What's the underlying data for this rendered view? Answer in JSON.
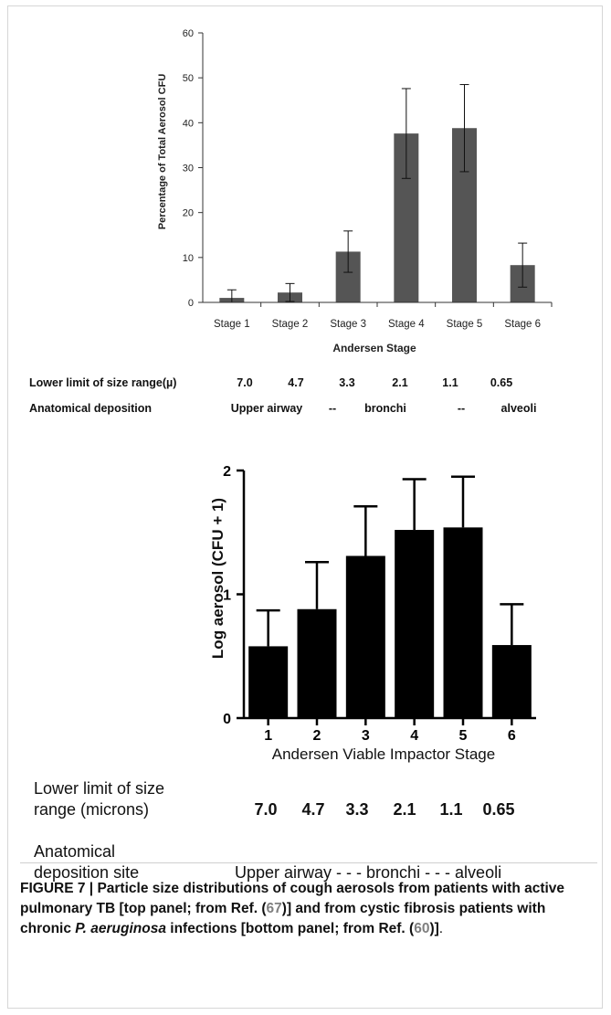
{
  "chart_data": [
    {
      "type": "bar",
      "categories": [
        "Stage 1",
        "Stage 2",
        "Stage 3",
        "Stage 4",
        "Stage 5",
        "Stage 6"
      ],
      "series": [
        {
          "values": [
            1.0,
            2.2,
            11.3,
            37.6,
            38.8,
            8.3
          ],
          "errors": [
            1.8,
            2.0,
            4.6,
            10.0,
            9.7,
            4.9
          ]
        }
      ],
      "xlabel": "Andersen Stage",
      "ylabel": "Percentage of Total Aerosol CFU",
      "ylim": [
        0,
        60
      ],
      "yticks": [
        "0",
        "10",
        "20",
        "30",
        "40",
        "50",
        "60"
      ],
      "color": "#555555",
      "grid": false,
      "annotations": {
        "size_row_label": "Lower limit of size range(µ)",
        "size_values": [
          "7.0",
          "4.7",
          "3.3",
          "2.1",
          "1.1",
          "0.65"
        ],
        "deposition_row_label": "Anatomical deposition",
        "deposition_values": [
          "Upper airway",
          "--",
          "bronchi",
          "--",
          "alveoli"
        ]
      }
    },
    {
      "type": "bar",
      "categories": [
        "1",
        "2",
        "3",
        "4",
        "5",
        "6"
      ],
      "series": [
        {
          "values": [
            0.58,
            0.88,
            1.31,
            1.52,
            1.54,
            0.59
          ],
          "errors": [
            0.29,
            0.38,
            0.4,
            0.41,
            0.41,
            0.33
          ]
        }
      ],
      "xlabel": "Andersen Viable Impactor Stage",
      "ylabel": "Log aerosol (CFU + 1)",
      "ylim": [
        0,
        2
      ],
      "yticks": [
        "0",
        "1",
        "2"
      ],
      "color": "#000000",
      "grid": false,
      "annotations": {
        "size_row_label_line1": "Lower limit of size",
        "size_row_label_line2": "range (microns)",
        "size_values": [
          "7.0",
          "4.7",
          "3.3",
          "2.1",
          "1.1",
          "0.65"
        ],
        "deposition_row_label_line1": "Anatomical",
        "deposition_row_label_line2": "deposition site",
        "deposition_text": "Upper airway - - - bronchi - - - alveoli"
      }
    }
  ],
  "caption": {
    "label": "FIGURE 7 | ",
    "text1": "Particle size distributions of cough aerosols from patients with active pulmonary TB [top panel; from Ref. (",
    "ref1": "67",
    "text2": ")] and from cystic fibrosis patients with chronic ",
    "italic": "P. aeruginosa",
    "text3": " infections [bottom panel; from Ref. (",
    "ref2": "60",
    "text4": ")]",
    "end": "."
  }
}
